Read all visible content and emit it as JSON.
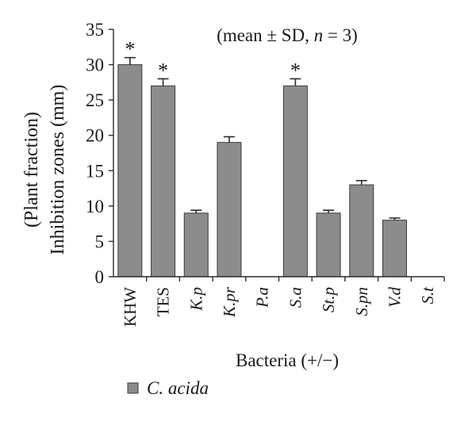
{
  "chart_data": {
    "type": "bar",
    "title": "(mean ± SD, n = 3)",
    "title_parts": {
      "prefix": "(mean ± SD, ",
      "n_symbol": "n",
      "suffix": " = 3)"
    },
    "xlabel": "Bacteria (+/−)",
    "ylabel_line1": "(Plant fraction)",
    "ylabel_line2": "Inhibition zones (mm)",
    "ylim": [
      0,
      35
    ],
    "yticks": [
      0,
      5,
      10,
      15,
      20,
      25,
      30,
      35
    ],
    "grid": false,
    "legend_position": "bottom-left",
    "categories": [
      {
        "label": "KHW",
        "italic": false
      },
      {
        "label": "TES",
        "italic": false
      },
      {
        "label": "K.p",
        "italic": true
      },
      {
        "label": "K.pr",
        "italic": true
      },
      {
        "label": "P.a",
        "italic": true
      },
      {
        "label": "S.a",
        "italic": true
      },
      {
        "label": "St.p",
        "italic": true
      },
      {
        "label": "S.pn",
        "italic": true
      },
      {
        "label": "V.d",
        "italic": true
      },
      {
        "label": "S.t",
        "italic": true
      }
    ],
    "series": [
      {
        "name": "C. acida",
        "color": "#8c8c8c",
        "values": [
          30,
          27,
          9,
          19,
          0,
          27,
          9,
          13,
          8,
          0
        ],
        "errors": [
          1.0,
          1.0,
          0.4,
          0.8,
          0,
          1.0,
          0.4,
          0.6,
          0.3,
          0
        ],
        "significant": [
          true,
          true,
          false,
          false,
          false,
          true,
          false,
          false,
          false,
          false
        ]
      }
    ],
    "significance_marker": "*"
  }
}
